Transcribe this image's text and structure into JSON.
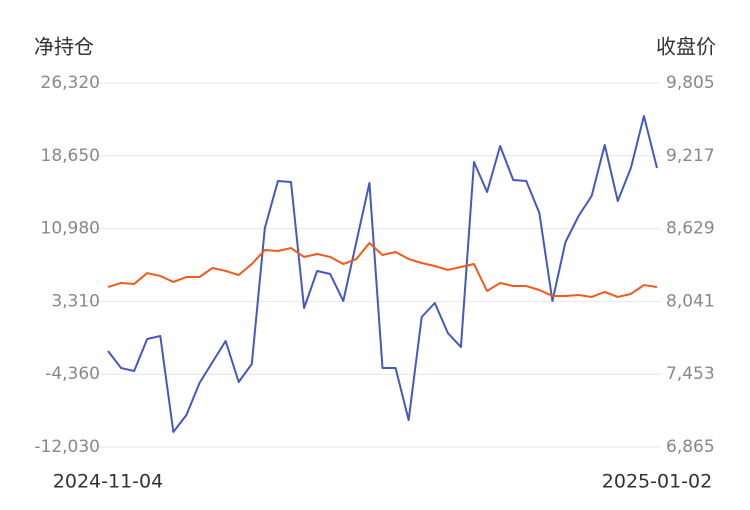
{
  "chart_data": {
    "type": "line",
    "y_label": "净持仓",
    "y2_label": "收盘价",
    "categories": [
      "2024-11-04",
      null,
      null,
      null,
      null,
      null,
      null,
      null,
      null,
      null,
      null,
      null,
      null,
      null,
      null,
      null,
      null,
      null,
      null,
      null,
      null,
      null,
      null,
      null,
      null,
      null,
      null,
      null,
      null,
      null,
      null,
      null,
      null,
      null,
      null,
      null,
      null,
      null,
      null,
      null,
      null,
      null,
      "2025-01-02"
    ],
    "series": [
      {
        "color": "#4459c0",
        "values": [
          -1916,
          -3708,
          -4024,
          -652,
          -336,
          -10451,
          -8660,
          -5288,
          -3075,
          -863,
          -5183,
          -3286,
          11043,
          15995,
          15889,
          2614,
          6512,
          6196,
          3352,
          9568,
          15784,
          -3708,
          -3708,
          -9186,
          1666,
          3141,
          -20,
          -1495,
          17997,
          14836,
          19682,
          16100,
          15995,
          12623,
          3352,
          9568,
          12307,
          14414,
          19788,
          13888,
          17364,
          22843,
          17364
        ]
      },
      {
        "color": "#f05a1a",
        "axis": "y2",
        "values": [
          8157,
          8190,
          8182,
          8270,
          8246,
          8198,
          8238,
          8238,
          8311,
          8287,
          8254,
          8343,
          8456,
          8448,
          8472,
          8400,
          8424,
          8400,
          8343,
          8383,
          8513,
          8416,
          8440,
          8383,
          8351,
          8327,
          8295,
          8319,
          8343,
          8125,
          8190,
          8165,
          8165,
          8133,
          8085,
          8085,
          8093,
          8077,
          8117,
          8077,
          8101,
          8173,
          8157
        ]
      }
    ],
    "ylim": [
      -12030,
      26320
    ],
    "yticks": [
      {
        "value": -12030,
        "label": "-12,030"
      },
      {
        "value": -4360,
        "label": "-4,360"
      },
      {
        "value": 3310,
        "label": "3,310"
      },
      {
        "value": 10980,
        "label": "10,980"
      },
      {
        "value": 18650,
        "label": "18,650"
      },
      {
        "value": 26320,
        "label": "26,320"
      }
    ],
    "y2lim": [
      6865,
      9805
    ],
    "y2ticks": [
      {
        "value": 6865,
        "label": "6,865"
      },
      {
        "value": 7453,
        "label": "7,453"
      },
      {
        "value": 8041,
        "label": "8,041"
      },
      {
        "value": 8629,
        "label": "8,629"
      },
      {
        "value": 9217,
        "label": "9,217"
      },
      {
        "value": 9805,
        "label": "9,805"
      }
    ],
    "grid": true
  }
}
